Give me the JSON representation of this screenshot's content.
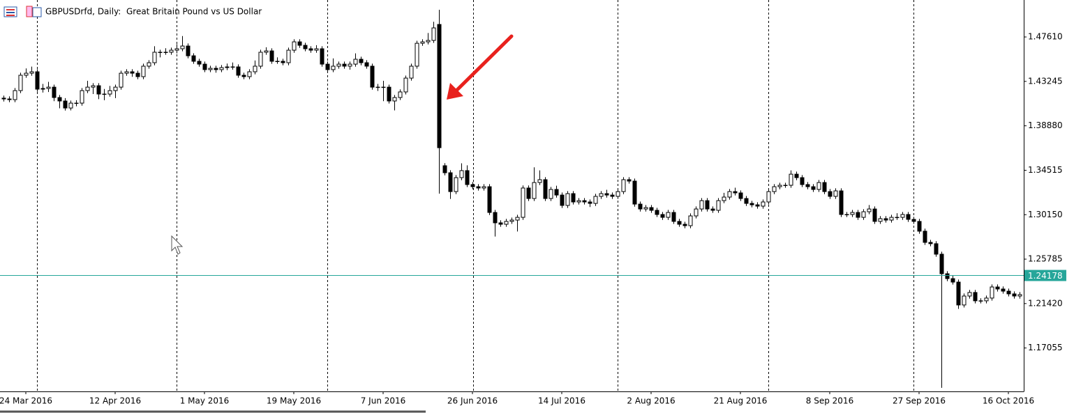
{
  "chart_data": {
    "type": "candlestick",
    "title": "GBPUSDrfd, Daily:  Great Britain Pound vs US Dollar",
    "ylim": [
      1.1279,
      1.5124
    ],
    "yticks": [
      {
        "value": 1.4761,
        "label": "1.47610"
      },
      1.43245,
      {
        "value": 1.3888,
        "label": "1.38880"
      },
      1.34515,
      {
        "value": 1.3015,
        "label": "1.30150"
      },
      1.25785,
      {
        "value": 1.2142,
        "label": "1.21420"
      },
      1.17055
    ],
    "current_price": 1.24178,
    "bull_color": "#ffffff",
    "bear_color": "#000000",
    "line_color": "#26a69a",
    "categories": [
      null,
      null,
      null,
      null,
      "24 Mar 2016",
      null,
      null,
      null,
      null,
      null,
      null,
      null,
      null,
      null,
      null,
      null,
      null,
      null,
      null,
      null,
      "12 Apr 2016",
      null,
      null,
      null,
      null,
      null,
      null,
      null,
      null,
      null,
      null,
      null,
      null,
      null,
      null,
      null,
      "1 May 2016",
      null,
      null,
      null,
      null,
      null,
      null,
      null,
      null,
      null,
      null,
      null,
      null,
      null,
      null,
      null,
      "19 May 2016",
      null,
      null,
      null,
      null,
      null,
      null,
      null,
      null,
      null,
      null,
      null,
      null,
      null,
      null,
      null,
      "7 Jun 2016",
      null,
      null,
      null,
      null,
      null,
      null,
      null,
      null,
      null,
      null,
      null,
      null,
      null,
      null,
      null,
      "26 Jun 2016",
      null,
      null,
      null,
      null,
      null,
      null,
      null,
      null,
      null,
      null,
      null,
      null,
      null,
      null,
      null,
      "14 Jul 2016",
      null,
      null,
      null,
      null,
      null,
      null,
      null,
      null,
      null,
      null,
      null,
      null,
      null,
      null,
      null,
      "2 Aug 2016",
      null,
      null,
      null,
      null,
      null,
      null,
      null,
      null,
      null,
      null,
      null,
      null,
      null,
      null,
      null,
      "21 Aug 2016",
      null,
      null,
      null,
      null,
      null,
      null,
      null,
      null,
      null,
      null,
      null,
      null,
      null,
      null,
      null,
      "8 Sep 2016",
      null,
      null,
      null,
      null,
      null,
      null,
      null,
      null,
      null,
      null,
      null,
      null,
      null,
      null,
      null,
      "27 Sep 2016",
      null,
      null,
      null,
      null,
      null,
      null,
      null,
      null,
      null,
      null,
      null,
      null,
      null,
      null,
      null,
      "16 Oct 2016",
      null,
      null
    ],
    "candles": [
      [
        1.416,
        1.4185,
        1.4127,
        1.4152
      ],
      [
        1.4152,
        1.4177,
        1.412,
        1.4145
      ],
      [
        1.4145,
        1.4259,
        1.412,
        1.4234
      ],
      [
        1.4234,
        1.441,
        1.4209,
        1.4385
      ],
      [
        1.4385,
        1.4452,
        1.436,
        1.4405
      ],
      [
        1.4405,
        1.447,
        1.438,
        1.4419
      ],
      [
        1.4419,
        1.4444,
        1.4223,
        1.4248
      ],
      [
        1.4248,
        1.43,
        1.4215,
        1.4255
      ],
      [
        1.4255,
        1.432,
        1.422,
        1.4268
      ],
      [
        1.4268,
        1.4293,
        1.413,
        1.4166
      ],
      [
        1.4166,
        1.4191,
        1.406,
        1.4132
      ],
      [
        1.4132,
        1.416,
        1.4038,
        1.4063
      ],
      [
        1.4063,
        1.4136,
        1.404,
        1.4111
      ],
      [
        1.4111,
        1.414,
        1.408,
        1.4111
      ],
      [
        1.4111,
        1.4259,
        1.4086,
        1.4234
      ],
      [
        1.4234,
        1.433,
        1.4209,
        1.4268
      ],
      [
        1.4268,
        1.4307,
        1.42,
        1.4282
      ],
      [
        1.4282,
        1.4307,
        1.415,
        1.42
      ],
      [
        1.42,
        1.425,
        1.414,
        1.42
      ],
      [
        1.42,
        1.428,
        1.4175,
        1.4234
      ],
      [
        1.4234,
        1.4293,
        1.416,
        1.4268
      ],
      [
        1.4268,
        1.443,
        1.4243,
        1.4405
      ],
      [
        1.4405,
        1.4444,
        1.438,
        1.4419
      ],
      [
        1.4419,
        1.4444,
        1.437,
        1.4405
      ],
      [
        1.4405,
        1.443,
        1.4346,
        1.4371
      ],
      [
        1.4371,
        1.4499,
        1.4346,
        1.4474
      ],
      [
        1.4474,
        1.4533,
        1.4449,
        1.4508
      ],
      [
        1.4508,
        1.467,
        1.4483,
        1.4611
      ],
      [
        1.4611,
        1.4636,
        1.456,
        1.4611
      ],
      [
        1.4611,
        1.465,
        1.4586,
        1.4611
      ],
      [
        1.4611,
        1.4656,
        1.4586,
        1.4631
      ],
      [
        1.4631,
        1.469,
        1.46,
        1.4645
      ],
      [
        1.4645,
        1.477,
        1.462,
        1.4672
      ],
      [
        1.4672,
        1.4697,
        1.4551,
        1.4576
      ],
      [
        1.4576,
        1.4601,
        1.4497,
        1.4522
      ],
      [
        1.4522,
        1.4547,
        1.4469,
        1.4494
      ],
      [
        1.4494,
        1.4519,
        1.4415,
        1.444
      ],
      [
        1.444,
        1.4478,
        1.4415,
        1.4453
      ],
      [
        1.4453,
        1.4478,
        1.441,
        1.444
      ],
      [
        1.444,
        1.4485,
        1.4415,
        1.446
      ],
      [
        1.446,
        1.45,
        1.4435,
        1.4467
      ],
      [
        1.4467,
        1.451,
        1.444,
        1.4467
      ],
      [
        1.4467,
        1.4492,
        1.436,
        1.4385
      ],
      [
        1.4385,
        1.441,
        1.4346,
        1.4371
      ],
      [
        1.4371,
        1.4444,
        1.4346,
        1.4419
      ],
      [
        1.4419,
        1.453,
        1.4394,
        1.4474
      ],
      [
        1.4474,
        1.4636,
        1.4449,
        1.4611
      ],
      [
        1.4611,
        1.466,
        1.4586,
        1.4624
      ],
      [
        1.4624,
        1.4649,
        1.4497,
        1.4522
      ],
      [
        1.4522,
        1.456,
        1.4497,
        1.4522
      ],
      [
        1.4522,
        1.4547,
        1.4483,
        1.4508
      ],
      [
        1.4508,
        1.4656,
        1.4483,
        1.4631
      ],
      [
        1.4631,
        1.4738,
        1.4606,
        1.4713
      ],
      [
        1.4713,
        1.4738,
        1.4654,
        1.4679
      ],
      [
        1.4679,
        1.4704,
        1.462,
        1.4645
      ],
      [
        1.4645,
        1.467,
        1.4606,
        1.4631
      ],
      [
        1.4631,
        1.468,
        1.4606,
        1.4645
      ],
      [
        1.4645,
        1.467,
        1.4469,
        1.4494
      ],
      [
        1.4494,
        1.4519,
        1.4415,
        1.444
      ],
      [
        1.444,
        1.455,
        1.4415,
        1.4474
      ],
      [
        1.4474,
        1.4519,
        1.4449,
        1.4494
      ],
      [
        1.4494,
        1.4519,
        1.4449,
        1.4474
      ],
      [
        1.4474,
        1.4519,
        1.444,
        1.4494
      ],
      [
        1.4494,
        1.46,
        1.4469,
        1.4542
      ],
      [
        1.4542,
        1.4567,
        1.4483,
        1.4508
      ],
      [
        1.4508,
        1.4533,
        1.4449,
        1.4474
      ],
      [
        1.4474,
        1.4499,
        1.4243,
        1.4268
      ],
      [
        1.4268,
        1.43,
        1.423,
        1.4268
      ],
      [
        1.4268,
        1.433,
        1.413,
        1.4268
      ],
      [
        1.4268,
        1.4293,
        1.4107,
        1.4132
      ],
      [
        1.4132,
        1.4191,
        1.404,
        1.4166
      ],
      [
        1.4166,
        1.4246,
        1.4141,
        1.4221
      ],
      [
        1.4221,
        1.4382,
        1.4196,
        1.4357
      ],
      [
        1.4357,
        1.4499,
        1.4332,
        1.4474
      ],
      [
        1.4474,
        1.4724,
        1.4449,
        1.4699
      ],
      [
        1.4699,
        1.4738,
        1.4674,
        1.4713
      ],
      [
        1.4713,
        1.48,
        1.4688,
        1.4727
      ],
      [
        1.4727,
        1.491,
        1.4702,
        1.485
      ],
      [
        1.4884,
        1.5028,
        1.3222,
        1.3673
      ],
      [
        1.3496,
        1.3521,
        1.3402,
        1.3427
      ],
      [
        1.3427,
        1.3452,
        1.317,
        1.3242
      ],
      [
        1.3242,
        1.3404,
        1.3217,
        1.3379
      ],
      [
        1.3379,
        1.352,
        1.3354,
        1.3448
      ],
      [
        1.3448,
        1.35,
        1.3286,
        1.3311
      ],
      [
        1.3311,
        1.3336,
        1.3265,
        1.329
      ],
      [
        1.329,
        1.3315,
        1.3252,
        1.3277
      ],
      [
        1.3277,
        1.3315,
        1.3252,
        1.329
      ],
      [
        1.329,
        1.3315,
        1.3012,
        1.3037
      ],
      [
        1.3037,
        1.3062,
        1.28,
        1.2935
      ],
      [
        1.2935,
        1.296,
        1.2896,
        1.2921
      ],
      [
        1.2921,
        1.2974,
        1.2896,
        1.2949
      ],
      [
        1.2949,
        1.2987,
        1.2924,
        1.2962
      ],
      [
        1.2962,
        1.3014,
        1.285,
        1.2989
      ],
      [
        1.2989,
        1.3302,
        1.2964,
        1.3277
      ],
      [
        1.3277,
        1.3302,
        1.3149,
        1.3174
      ],
      [
        1.3174,
        1.348,
        1.3149,
        1.3331
      ],
      [
        1.3331,
        1.345,
        1.3306,
        1.3359
      ],
      [
        1.3359,
        1.3384,
        1.3149,
        1.3174
      ],
      [
        1.3174,
        1.3288,
        1.3149,
        1.3263
      ],
      [
        1.3263,
        1.33,
        1.3183,
        1.3208
      ],
      [
        1.3208,
        1.3233,
        1.3081,
        1.3106
      ],
      [
        1.3106,
        1.3247,
        1.3081,
        1.3222
      ],
      [
        1.3222,
        1.3247,
        1.3115,
        1.314
      ],
      [
        1.314,
        1.3178,
        1.3115,
        1.3153
      ],
      [
        1.3153,
        1.3178,
        1.3115,
        1.314
      ],
      [
        1.314,
        1.3165,
        1.309,
        1.3126
      ],
      [
        1.3126,
        1.322,
        1.3101,
        1.3195
      ],
      [
        1.3195,
        1.3247,
        1.317,
        1.3222
      ],
      [
        1.3222,
        1.326,
        1.3183,
        1.3208
      ],
      [
        1.3208,
        1.3233,
        1.317,
        1.3195
      ],
      [
        1.3195,
        1.3267,
        1.317,
        1.3242
      ],
      [
        1.3242,
        1.3384,
        1.3217,
        1.3359
      ],
      [
        1.3359,
        1.3384,
        1.332,
        1.3345
      ],
      [
        1.3345,
        1.337,
        1.3094,
        1.3119
      ],
      [
        1.3119,
        1.3144,
        1.3046,
        1.3071
      ],
      [
        1.3071,
        1.311,
        1.3046,
        1.3085
      ],
      [
        1.3085,
        1.311,
        1.3033,
        1.3058
      ],
      [
        1.3058,
        1.3083,
        1.2992,
        1.3017
      ],
      [
        1.3017,
        1.3042,
        1.2964,
        1.2989
      ],
      [
        1.2989,
        1.3062,
        1.2964,
        1.3037
      ],
      [
        1.3037,
        1.3062,
        1.2924,
        1.2949
      ],
      [
        1.2949,
        1.2974,
        1.2896,
        1.2921
      ],
      [
        1.2921,
        1.2946,
        1.2882,
        1.2907
      ],
      [
        1.2907,
        1.3028,
        1.2882,
        1.3003
      ],
      [
        1.3003,
        1.3096,
        1.2978,
        1.3071
      ],
      [
        1.3071,
        1.3178,
        1.3046,
        1.3153
      ],
      [
        1.3153,
        1.3178,
        1.3046,
        1.3071
      ],
      [
        1.3071,
        1.3096,
        1.3033,
        1.3058
      ],
      [
        1.3058,
        1.3178,
        1.3033,
        1.3153
      ],
      [
        1.3153,
        1.323,
        1.3128,
        1.3188
      ],
      [
        1.3188,
        1.3267,
        1.3163,
        1.3242
      ],
      [
        1.3242,
        1.328,
        1.3204,
        1.3229
      ],
      [
        1.3229,
        1.3254,
        1.3149,
        1.3174
      ],
      [
        1.3174,
        1.3199,
        1.3101,
        1.3126
      ],
      [
        1.3126,
        1.3151,
        1.3087,
        1.3112
      ],
      [
        1.3112,
        1.3137,
        1.3074,
        1.3099
      ],
      [
        1.3099,
        1.3165,
        1.3074,
        1.314
      ],
      [
        1.314,
        1.3267,
        1.3115,
        1.3242
      ],
      [
        1.3242,
        1.3315,
        1.3217,
        1.329
      ],
      [
        1.329,
        1.3329,
        1.3265,
        1.3304
      ],
      [
        1.3304,
        1.3329,
        1.3279,
        1.3304
      ],
      [
        1.3304,
        1.345,
        1.3279,
        1.3413
      ],
      [
        1.3413,
        1.3438,
        1.3354,
        1.3379
      ],
      [
        1.3379,
        1.3404,
        1.3286,
        1.3311
      ],
      [
        1.3311,
        1.3336,
        1.3265,
        1.329
      ],
      [
        1.329,
        1.3315,
        1.3238,
        1.3263
      ],
      [
        1.3263,
        1.3356,
        1.3238,
        1.3331
      ],
      [
        1.3331,
        1.3356,
        1.3217,
        1.3242
      ],
      [
        1.3242,
        1.3267,
        1.317,
        1.3195
      ],
      [
        1.3195,
        1.3274,
        1.317,
        1.3249
      ],
      [
        1.3249,
        1.3274,
        1.2992,
        1.3017
      ],
      [
        1.3017,
        1.3042,
        1.2992,
        1.3017
      ],
      [
        1.3017,
        1.3062,
        1.2992,
        1.3037
      ],
      [
        1.3037,
        1.3062,
        1.2964,
        1.2989
      ],
      [
        1.2989,
        1.3069,
        1.2964,
        1.3044
      ],
      [
        1.3044,
        1.311,
        1.3019,
        1.3071
      ],
      [
        1.3071,
        1.3096,
        1.2924,
        1.2949
      ],
      [
        1.2949,
        1.3001,
        1.2924,
        1.2976
      ],
      [
        1.2976,
        1.3001,
        1.2937,
        1.2962
      ],
      [
        1.2962,
        1.3014,
        1.2937,
        1.2989
      ],
      [
        1.2989,
        1.303,
        1.2964,
        1.2989
      ],
      [
        1.2989,
        1.3042,
        1.2964,
        1.3017
      ],
      [
        1.3017,
        1.3042,
        1.2944,
        1.2969
      ],
      [
        1.2969,
        1.2994,
        1.2924,
        1.2949
      ],
      [
        1.2949,
        1.2974,
        1.2828,
        1.2853
      ],
      [
        1.2853,
        1.2878,
        1.2718,
        1.2743
      ],
      [
        1.2743,
        1.2768,
        1.2705,
        1.273
      ],
      [
        1.273,
        1.2755,
        1.2602,
        1.2627
      ],
      [
        1.2627,
        1.2652,
        1.1314,
        1.2435
      ],
      [
        1.2435,
        1.246,
        1.2362,
        1.2387
      ],
      [
        1.2387,
        1.242,
        1.2328,
        1.2353
      ],
      [
        1.2353,
        1.2378,
        1.209,
        1.2128
      ],
      [
        1.2128,
        1.2241,
        1.2103,
        1.2216
      ],
      [
        1.2216,
        1.2276,
        1.2191,
        1.2251
      ],
      [
        1.2251,
        1.2276,
        1.2144,
        1.2169
      ],
      [
        1.2169,
        1.2194,
        1.2144,
        1.2169
      ],
      [
        1.2169,
        1.2221,
        1.2144,
        1.2196
      ],
      [
        1.2196,
        1.233,
        1.2171,
        1.2305
      ],
      [
        1.2305,
        1.233,
        1.226,
        1.2285
      ],
      [
        1.2285,
        1.231,
        1.2239,
        1.2264
      ],
      [
        1.2264,
        1.2289,
        1.2212,
        1.2237
      ],
      [
        1.2237,
        1.2262,
        1.2191,
        1.2216
      ],
      [
        1.2216,
        1.2255,
        1.2191,
        1.223
      ]
    ]
  }
}
